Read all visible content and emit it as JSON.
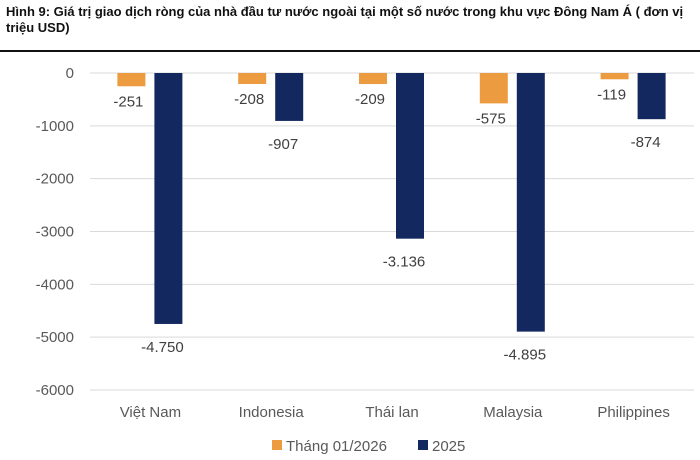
{
  "title": "Hình 9: Giá trị giao dịch ròng của nhà đầu tư nước ngoài tại một số nước trong khu vực Đông Nam Á ( đơn vị triệu USD)",
  "chart_data": {
    "type": "bar",
    "categories": [
      "Việt Nam",
      "Indonesia",
      "Thái lan",
      "Malaysia",
      "Philippines"
    ],
    "series": [
      {
        "name": "Tháng 01/2026",
        "color": "#ED9B40",
        "values": [
          -251,
          -208,
          -209,
          -575,
          -119
        ],
        "labels": [
          "-251",
          "-208",
          "-209",
          "-575",
          "-119"
        ]
      },
      {
        "name": "2025",
        "color": "#13285E",
        "values": [
          -4750,
          -907,
          -3136,
          -4895,
          -874
        ],
        "labels": [
          "-4.750",
          "-907",
          "-3.136",
          "-4.895",
          "-874"
        ]
      }
    ],
    "yticks": [
      "0",
      "-1000",
      "-2000",
      "-3000",
      "-4000",
      "-5000",
      "-6000"
    ],
    "ylim": [
      -6000,
      0
    ],
    "grid": true,
    "legend": "bottom",
    "gridColor": "#D9D9D9"
  }
}
